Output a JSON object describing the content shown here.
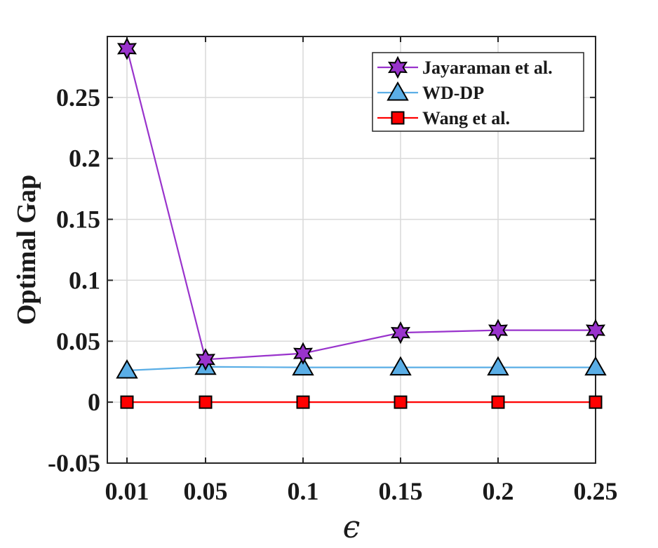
{
  "chart_data": {
    "type": "line",
    "title": "",
    "xlabel": "ϵ",
    "ylabel": "Optimal Gap",
    "x": [
      "0.01",
      "0.05",
      "0.1",
      "0.15",
      "0.2",
      "0.25"
    ],
    "ylim": [
      -0.05,
      0.3
    ],
    "yticks": [
      -0.05,
      0,
      0.05,
      0.1,
      0.15,
      0.2,
      0.25
    ],
    "ytick_labels": [
      "-0.05",
      "0",
      "0.05",
      "0.1",
      "0.15",
      "0.2",
      "0.25"
    ],
    "grid": true,
    "legend_position": "top-right",
    "series": [
      {
        "name": "Jayaraman et al.",
        "color": "#9933cc",
        "marker": "hexagram",
        "values": [
          0.29,
          0.035,
          0.04,
          0.057,
          0.059,
          0.059
        ]
      },
      {
        "name": "WD-DP",
        "color": "#5aaee6",
        "marker": "triangle",
        "values": [
          0.026,
          0.029,
          0.0285,
          0.0285,
          0.0285,
          0.0285
        ]
      },
      {
        "name": "Wang et al.",
        "color": "#ff0000",
        "marker": "square",
        "values": [
          0.0,
          0.0,
          0.0,
          0.0,
          0.0,
          0.0
        ]
      }
    ]
  }
}
